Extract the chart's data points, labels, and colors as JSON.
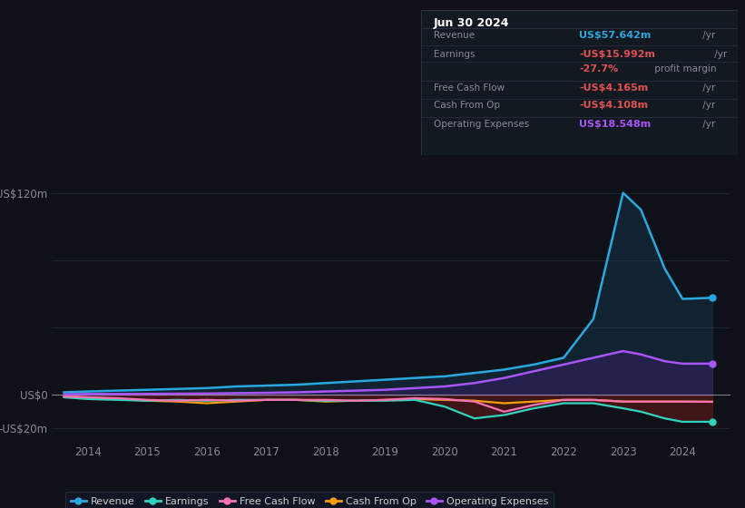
{
  "background_color": "#0e1117",
  "plot_bg_color": "#0e1117",
  "info_bg_color": "#131920",
  "info_border_color": "#2a3040",
  "date_label": "Jun 30 2024",
  "rows": [
    {
      "label": "Revenue",
      "value": "US$57.642m",
      "unit": " /yr",
      "value_color": "#29a8e0"
    },
    {
      "label": "Earnings",
      "value": "-US$15.992m",
      "unit": " /yr",
      "value_color": "#e05252"
    },
    {
      "label": "",
      "value": "-27.7%",
      "unit": " profit margin",
      "value_color": "#e05252"
    },
    {
      "label": "Free Cash Flow",
      "value": "-US$4.165m",
      "unit": " /yr",
      "value_color": "#e05252"
    },
    {
      "label": "Cash From Op",
      "value": "-US$4.108m",
      "unit": " /yr",
      "value_color": "#e05252"
    },
    {
      "label": "Operating Expenses",
      "value": "US$18.548m",
      "unit": " /yr",
      "value_color": "#a855f7"
    }
  ],
  "years": [
    2013.6,
    2014.0,
    2014.5,
    2015.0,
    2015.5,
    2016.0,
    2016.5,
    2017.0,
    2017.5,
    2018.0,
    2018.5,
    2019.0,
    2019.5,
    2020.0,
    2020.5,
    2021.0,
    2021.5,
    2022.0,
    2022.5,
    2023.0,
    2023.3,
    2023.7,
    2024.0,
    2024.5
  ],
  "revenue": [
    1.5,
    2.0,
    2.5,
    3.0,
    3.5,
    4.0,
    5.0,
    5.5,
    6.0,
    7.0,
    8.0,
    9.0,
    10.0,
    11.0,
    13.0,
    15.0,
    18.0,
    22.0,
    45.0,
    120.0,
    110.0,
    75.0,
    57.0,
    57.642
  ],
  "earnings": [
    -1.5,
    -2.5,
    -3.0,
    -3.5,
    -3.0,
    -3.5,
    -3.0,
    -3.0,
    -3.0,
    -3.5,
    -3.5,
    -3.5,
    -3.0,
    -7.0,
    -14.0,
    -12.0,
    -8.0,
    -5.0,
    -5.0,
    -8.0,
    -10.0,
    -14.0,
    -16.0,
    -15.992
  ],
  "free_cash_flow": [
    -1.0,
    -1.5,
    -2.0,
    -3.0,
    -3.5,
    -3.0,
    -3.5,
    -3.0,
    -3.0,
    -3.0,
    -3.5,
    -3.0,
    -2.0,
    -2.5,
    -4.0,
    -10.0,
    -6.0,
    -3.0,
    -3.0,
    -4.0,
    -4.0,
    -4.0,
    -4.0,
    -4.165
  ],
  "cash_from_op": [
    -1.0,
    -1.5,
    -2.5,
    -3.5,
    -4.0,
    -5.0,
    -4.0,
    -3.0,
    -3.0,
    -4.0,
    -3.5,
    -3.0,
    -2.5,
    -3.0,
    -3.5,
    -5.0,
    -4.0,
    -3.0,
    -3.0,
    -4.0,
    -4.0,
    -4.0,
    -4.0,
    -4.108
  ],
  "operating_expenses": [
    0.3,
    0.5,
    0.5,
    0.6,
    0.7,
    0.8,
    1.0,
    1.2,
    1.5,
    2.0,
    2.5,
    3.0,
    4.0,
    5.0,
    7.0,
    10.0,
    14.0,
    18.0,
    22.0,
    26.0,
    24.0,
    20.0,
    18.5,
    18.548
  ],
  "revenue_color": "#29a8e0",
  "earnings_color": "#2dd4bf",
  "free_cash_flow_color": "#f472b6",
  "cash_from_op_color": "#f59e0b",
  "operating_expenses_color": "#a855f7",
  "revenue_fill_color": "#1a4a6e",
  "earnings_fill_color": "#6b1a1a",
  "operating_expenses_fill_color": "#3b1f6e",
  "zero_line_color": "#cccccc",
  "grid_color": "#1e2533",
  "text_color": "#888899",
  "label_color": "#cccccc",
  "ylim": [
    -28,
    138
  ],
  "ytick_vals": [
    -20,
    0,
    120
  ],
  "ytick_labels": [
    "-US$20m",
    "US$0",
    "US$120m"
  ],
  "xtick_vals": [
    2014,
    2015,
    2016,
    2017,
    2018,
    2019,
    2020,
    2021,
    2022,
    2023,
    2024
  ],
  "xlim": [
    2013.4,
    2024.8
  ],
  "legend_labels": [
    "Revenue",
    "Earnings",
    "Free Cash Flow",
    "Cash From Op",
    "Operating Expenses"
  ],
  "legend_colors": [
    "#29a8e0",
    "#2dd4bf",
    "#f472b6",
    "#f59e0b",
    "#a855f7"
  ]
}
